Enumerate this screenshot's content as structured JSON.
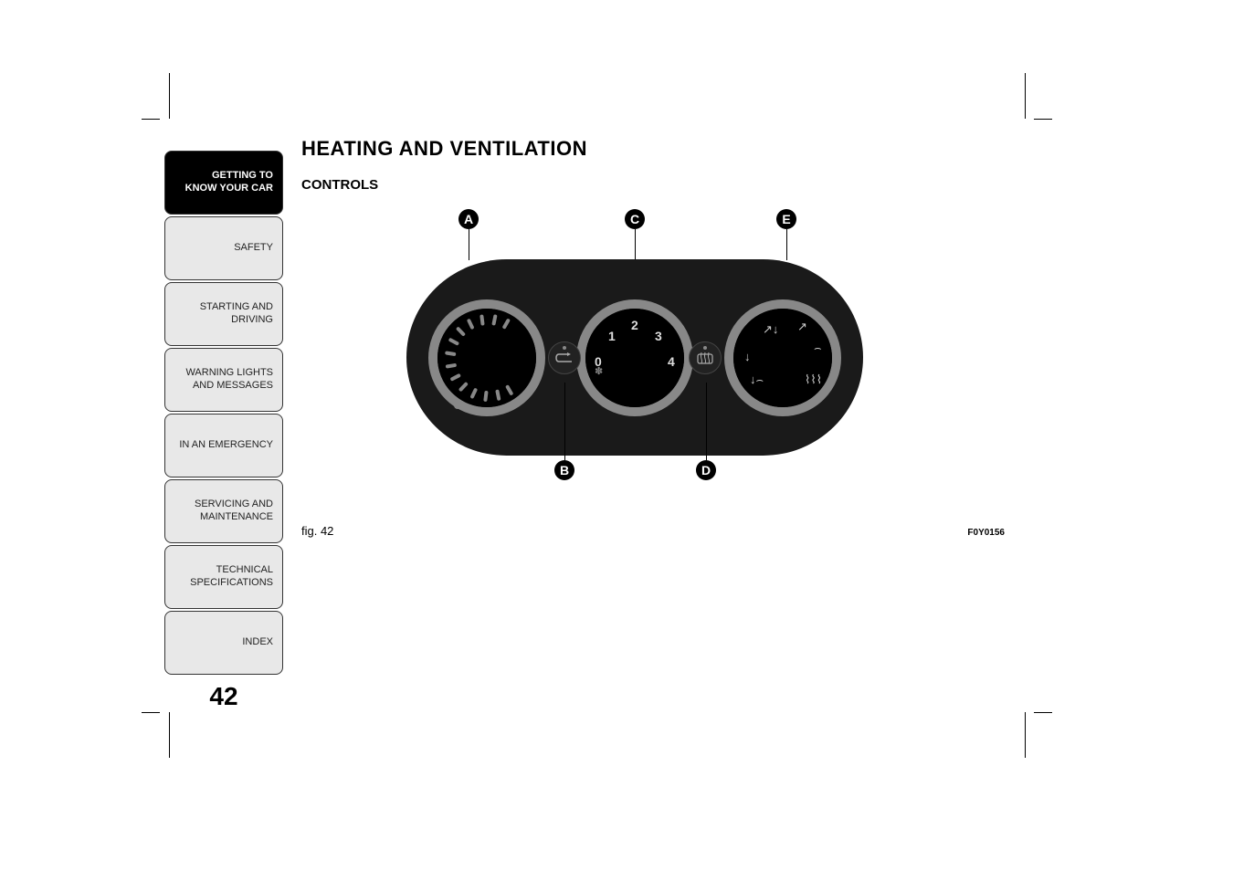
{
  "sidebar": {
    "tabs": [
      {
        "label": "GETTING TO\nKNOW YOUR CAR",
        "active": true
      },
      {
        "label": "SAFETY",
        "active": false
      },
      {
        "label": "STARTING AND\nDRIVING",
        "active": false
      },
      {
        "label": "WARNING LIGHTS\nAND MESSAGES",
        "active": false
      },
      {
        "label": "IN AN EMERGENCY",
        "active": false
      },
      {
        "label": "SERVICING AND\nMAINTENANCE",
        "active": false
      },
      {
        "label": "TECHNICAL\nSPECIFICATIONS",
        "active": false
      },
      {
        "label": "INDEX",
        "active": false
      }
    ],
    "page_number": "42"
  },
  "headings": {
    "h1": "HEATING AND VENTILATION",
    "h2": "CONTROLS"
  },
  "figure": {
    "caption": "fig. 42",
    "code": "F0Y0156",
    "callouts": {
      "A": "A",
      "B": "B",
      "C": "C",
      "D": "D",
      "E": "E"
    },
    "fan_numbers": [
      "0",
      "1",
      "2",
      "3",
      "4"
    ],
    "panel_bg": "#1a1a1a",
    "dial_ring": "#888888",
    "dial_face": "#000000",
    "tick_count": 14,
    "tick_color": "#888888"
  }
}
